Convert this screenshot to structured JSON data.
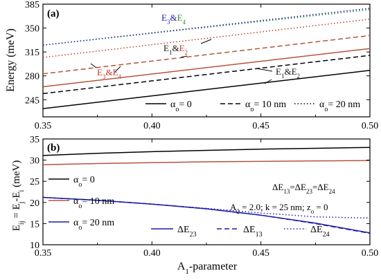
{
  "chart_data": [
    {
      "panel_label": "(a)",
      "type": "line",
      "xlabel": "",
      "ylabel": "Energy (meV)",
      "xlim": [
        0.35,
        0.5
      ],
      "ylim": [
        220,
        385
      ],
      "xticks": [
        "0.35",
        "0.40",
        "0.45",
        "0.50"
      ],
      "yticks": [
        "245",
        "280",
        "315",
        "350",
        "385"
      ],
      "ytick_values": [
        245,
        280,
        315,
        350,
        385
      ],
      "grid": false,
      "legend": {
        "placement": "bottom",
        "entries": [
          {
            "label": "αo= 0",
            "base": "α",
            "sub": "o",
            "rest": "= 0",
            "dash": "solid"
          },
          {
            "label": "αo= 10 nm",
            "base": "α",
            "sub": "o",
            "rest": "= 10 nm",
            "dash": "dashed"
          },
          {
            "label": "αo= 20 nm",
            "base": "α",
            "sub": "o",
            "rest": "= 20 nm",
            "dash": "dotted"
          }
        ]
      },
      "annotations": [
        {
          "label": "E3&E4",
          "color1": "#1a1aa8",
          "color2": "#2e8b2e",
          "pos": "top"
        },
        {
          "label": "E1&E2",
          "color1": "#111111",
          "color2": "#c0392b",
          "pos": "upper-mid"
        },
        {
          "label": "E3&E4",
          "color1": "#c0392b",
          "color2": "#c0392b",
          "pos": "left-mid"
        },
        {
          "label": "E1&E2",
          "color1": "#111111",
          "color2": "#111111",
          "pos": "right-mid"
        }
      ],
      "series": [
        {
          "level": "E1&E2",
          "alpha": 0,
          "dash": "solid",
          "color": "#000000",
          "x": [
            0.35,
            0.5
          ],
          "y": [
            232,
            288
          ]
        },
        {
          "level": "E3&E4",
          "alpha": 0,
          "dash": "solid",
          "color": "#b5533c",
          "x": [
            0.35,
            0.5
          ],
          "y": [
            264,
            320
          ]
        },
        {
          "level": "E1&E2",
          "alpha": 10,
          "dash": "dashed",
          "color": "#000000",
          "x": [
            0.35,
            0.5
          ],
          "y": [
            254,
            310
          ]
        },
        {
          "level": "E3&E4",
          "alpha": 10,
          "dash": "dashed",
          "color": "#b5533c",
          "x": [
            0.35,
            0.5
          ],
          "y": [
            283,
            339
          ]
        },
        {
          "level": "E1&E2",
          "alpha": 20,
          "dash": "dotted",
          "color": "#c0392b",
          "x": [
            0.35,
            0.5
          ],
          "y": [
            307,
            363
          ]
        },
        {
          "level": "E3&E4",
          "alpha": 20,
          "dash": "dotted",
          "color": "#2e8b2e",
          "x": [
            0.35,
            0.5
          ],
          "y": [
            325,
            377
          ]
        },
        {
          "level": "E3&E4",
          "alpha": 20,
          "dash": "dotted",
          "color": "#1a1aa8",
          "x": [
            0.35,
            0.5
          ],
          "y": [
            325,
            379
          ]
        }
      ]
    },
    {
      "panel_label": "(b)",
      "type": "line",
      "xlabel": "A1-parameter",
      "xlabel_base": "A",
      "xlabel_sub": "1",
      "xlabel_rest": "-parameter",
      "ylabel": "Eij = Ej - Ei (meV)",
      "xlim": [
        0.35,
        0.5
      ],
      "ylim": [
        10,
        35
      ],
      "xticks": [
        "0.35",
        "0.40",
        "0.45",
        "0.50"
      ],
      "yticks": [
        "10",
        "15",
        "20",
        "25",
        "30",
        "35"
      ],
      "ytick_values": [
        10,
        15,
        20,
        25,
        30,
        35
      ],
      "grid": false,
      "annotation_lines": [
        "ΔE13=ΔE23=ΔE24",
        "A2 = 2.0; k = 25 nm; zo = 0"
      ],
      "legend_left": [
        {
          "label": "αo= 0",
          "color": "#000000"
        },
        {
          "label": "αo= 10 nm",
          "color": "#b5533c"
        },
        {
          "label": "αo= 20 nm",
          "color": "#1a1aa8"
        }
      ],
      "legend_bottom": [
        {
          "label": "ΔE23",
          "dash": "solid",
          "color": "#1a1aa8"
        },
        {
          "label": "ΔE13",
          "dash": "dashed",
          "color": "#1a1aa8"
        },
        {
          "label": "ΔE24",
          "dash": "dotted",
          "color": "#1a1aa8"
        }
      ],
      "series": [
        {
          "name": "αo= 0",
          "color": "#000000",
          "dash": "solid",
          "x": [
            0.35,
            0.375,
            0.4,
            0.425,
            0.45,
            0.475,
            0.5
          ],
          "y": [
            31.1,
            31.6,
            32.0,
            32.3,
            32.6,
            32.8,
            33.0
          ]
        },
        {
          "name": "αo= 10 nm",
          "color": "#b5533c",
          "dash": "solid",
          "x": [
            0.35,
            0.375,
            0.4,
            0.425,
            0.45,
            0.475,
            0.5
          ],
          "y": [
            28.9,
            29.2,
            29.4,
            29.6,
            29.7,
            29.8,
            29.9
          ]
        },
        {
          "name": "ΔE23",
          "color": "#1a1aa8",
          "dash": "solid",
          "x": [
            0.35,
            0.375,
            0.4,
            0.425,
            0.45,
            0.475,
            0.5
          ],
          "y": [
            21.2,
            20.5,
            19.6,
            18.5,
            17.0,
            15.1,
            12.8
          ]
        },
        {
          "name": "ΔE13",
          "color": "#1a1aa8",
          "dash": "dashed",
          "x": [
            0.35,
            0.375,
            0.4,
            0.425,
            0.45,
            0.475,
            0.5
          ],
          "y": [
            21.2,
            20.5,
            19.6,
            18.5,
            17.0,
            15.0,
            12.7
          ]
        },
        {
          "name": "ΔE24",
          "color": "#1a1aa8",
          "dash": "dotted",
          "x": [
            0.35,
            0.375,
            0.4,
            0.425,
            0.45,
            0.475,
            0.5
          ],
          "y": [
            21.2,
            20.5,
            19.6,
            18.6,
            17.5,
            16.6,
            16.3
          ]
        }
      ]
    }
  ]
}
